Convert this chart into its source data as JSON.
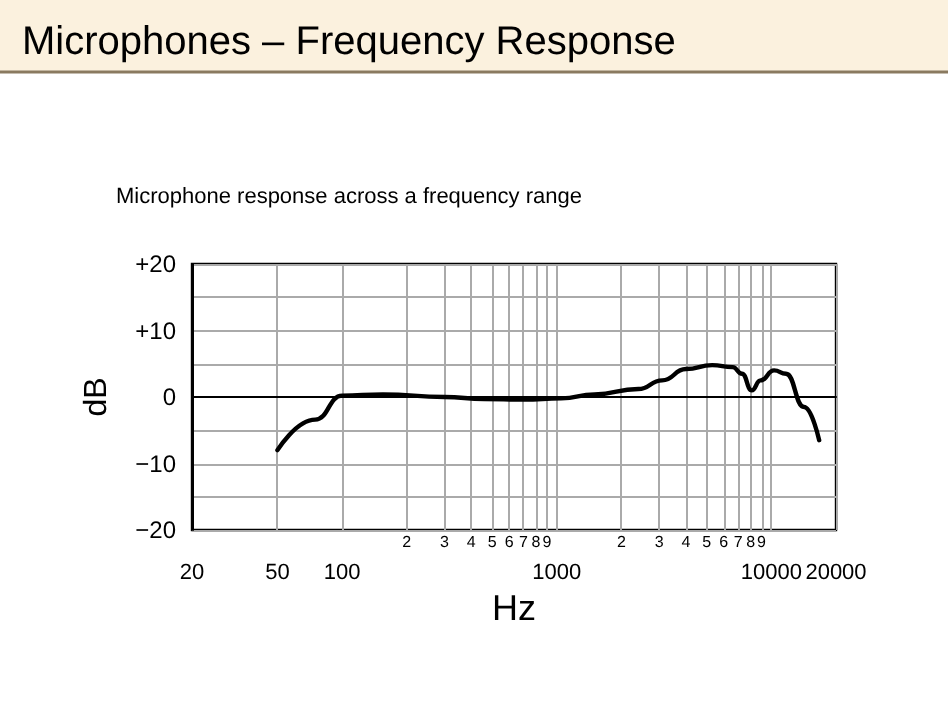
{
  "chart_data": {
    "type": "line",
    "title": "Microphones – Frequency Response",
    "subtitle": "Microphone response across a frequency range",
    "xlabel": "Hz",
    "ylabel": "dB",
    "x": [
      50,
      75,
      100,
      155,
      300,
      460,
      700,
      1050,
      1500,
      2400,
      3100,
      4000,
      5300,
      6600,
      7300,
      8100,
      8900,
      10300,
      11700,
      14200,
      16700
    ],
    "series": [
      {
        "color": "#000000",
        "values": [
          -8,
          -3.4,
          0.2,
          0.4,
          0,
          -0.3,
          -0.4,
          -0.2,
          0.4,
          1.2,
          2.5,
          4.2,
          4.8,
          4.5,
          3.5,
          1,
          2.5,
          4,
          3.5,
          -1.5,
          -6.5
        ]
      }
    ],
    "xlim": [
      20,
      20000
    ],
    "xticks": [
      20,
      50,
      100,
      {
        "value": 200,
        "label": null
      },
      {
        "value": 300,
        "label": null
      },
      {
        "value": 400,
        "label": null
      },
      {
        "value": 500,
        "label": null
      },
      {
        "value": 600,
        "label": null
      },
      {
        "value": 700,
        "label": null
      },
      {
        "value": 800,
        "label": null
      },
      {
        "value": 900,
        "label": null
      },
      1000,
      {
        "value": 2000,
        "label": null
      },
      {
        "value": 3000,
        "label": null
      },
      {
        "value": 4000,
        "label": null
      },
      {
        "value": 5000,
        "label": null
      },
      {
        "value": 6000,
        "label": null
      },
      {
        "value": 7000,
        "label": null
      },
      {
        "value": 8000,
        "label": null
      },
      {
        "value": 9000,
        "label": null
      },
      10000,
      20000
    ],
    "annotations": [
      "2",
      "3",
      "4",
      "5",
      "6",
      "7",
      "8",
      "9",
      "2",
      "3",
      "4",
      "5",
      "6",
      "7",
      "8",
      "9"
    ],
    "ylim": [
      -20,
      20
    ],
    "yticks": [
      {
        "value": -20,
        "label": "−20"
      },
      {
        "value": -15,
        "label": null
      },
      {
        "value": -10,
        "label": "−10"
      },
      {
        "value": -5,
        "label": null
      },
      {
        "value": 0,
        "label": "0"
      },
      {
        "value": 5,
        "label": null
      },
      {
        "value": 10,
        "label": "+10"
      },
      {
        "value": 15,
        "label": null
      },
      {
        "value": 20,
        "label": "+20"
      }
    ],
    "log": "x",
    "grid": true,
    "marker": "none",
    "line_style": "solid"
  }
}
